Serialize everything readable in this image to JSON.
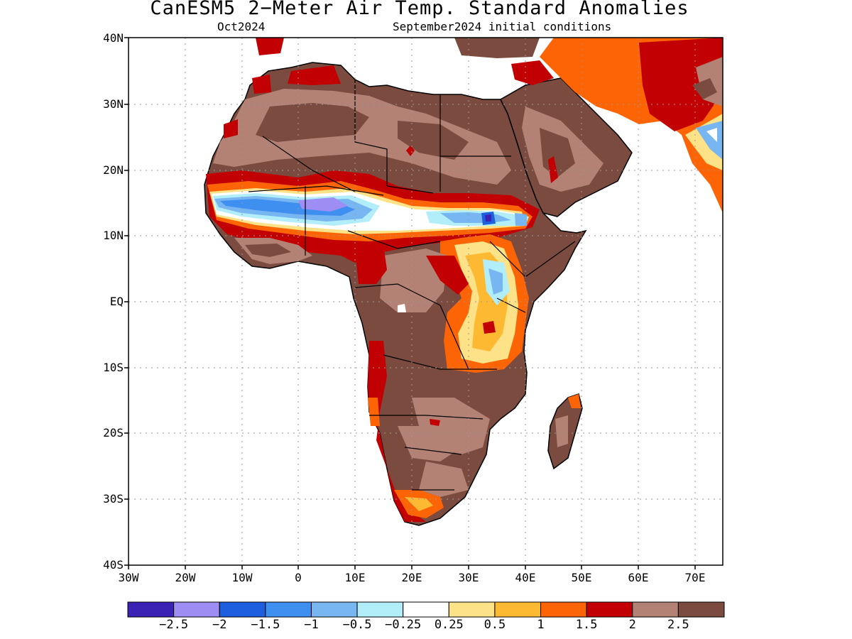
{
  "title": "CanESM5 2−Meter Air Temp. Standard Anomalies",
  "subtitle_left": "Oct2024",
  "subtitle_right": "September2024 initial conditions",
  "lat_labels": [
    "40N",
    "30N",
    "20N",
    "10N",
    "EQ",
    "10S",
    "20S",
    "30S",
    "40S"
  ],
  "lon_labels": [
    "30W",
    "20W",
    "10W",
    "0",
    "10E",
    "20E",
    "30E",
    "40E",
    "50E",
    "60E",
    "70E"
  ],
  "colorbar": {
    "colors": [
      "#3b22b4",
      "#9e8ef4",
      "#1e5fe0",
      "#3f8ff0",
      "#78b6f2",
      "#b2eefa",
      "#ffffff",
      "#fde287",
      "#feb933",
      "#fd6405",
      "#c20003",
      "#b38275",
      "#7a4b3e"
    ],
    "labels": [
      "−2.5",
      "−2",
      "−1.5",
      "−1",
      "−0.5",
      "−0.25",
      "0.25",
      "0.5",
      "1",
      "1.5",
      "2",
      "2.5"
    ]
  },
  "chart_data": {
    "type": "heatmap",
    "variable": "2-Meter Air Temp. Standard Anomalies",
    "model": "CanESM5",
    "target": "Oct2024",
    "initial_conditions": "September2024",
    "lon_range": [
      "30W",
      "75E"
    ],
    "lat_range": [
      "40S",
      "40N"
    ],
    "grid": true,
    "contour_levels": [
      -2.5,
      -2,
      -1.5,
      -1,
      -0.5,
      -0.25,
      0.25,
      0.5,
      1,
      1.5,
      2,
      2.5
    ]
  }
}
